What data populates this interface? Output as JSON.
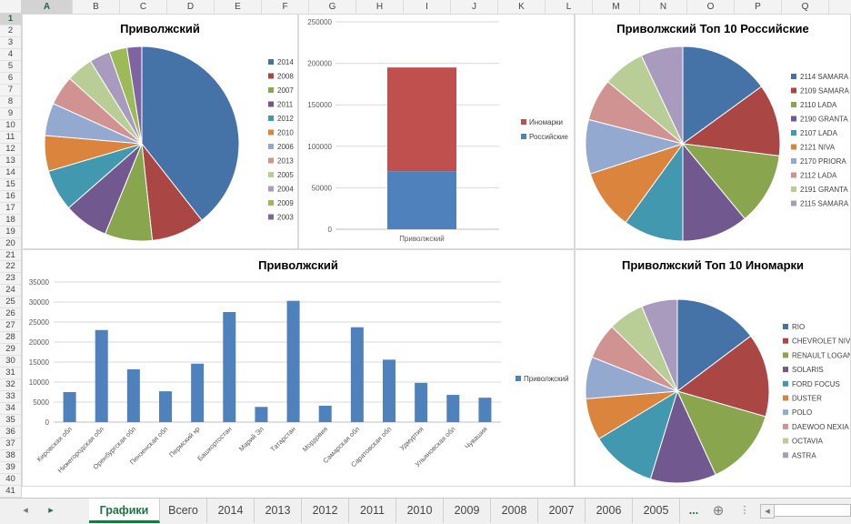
{
  "columns": [
    "A",
    "B",
    "C",
    "D",
    "E",
    "F",
    "G",
    "H",
    "I",
    "J",
    "K",
    "L",
    "M",
    "N",
    "O",
    "P",
    "Q"
  ],
  "rows": [
    "1",
    "2",
    "3",
    "4",
    "5",
    "6",
    "7",
    "8",
    "9",
    "10",
    "11",
    "12",
    "13",
    "14",
    "15",
    "16",
    "17",
    "18",
    "19",
    "20",
    "21",
    "22",
    "23",
    "24",
    "25",
    "26",
    "27",
    "28",
    "29",
    "30",
    "31",
    "32",
    "33",
    "34",
    "35",
    "36",
    "37",
    "38",
    "39",
    "40",
    "41"
  ],
  "tabs": [
    "Графики",
    "Всего",
    "2014",
    "2013",
    "2012",
    "2011",
    "2010",
    "2009",
    "2008",
    "2007",
    "2006",
    "2005",
    "..."
  ],
  "tab_nav": {
    "prev": "◂",
    "next": "▸",
    "add": "⊕",
    "more": "⋮",
    "scroll_left": "◂"
  },
  "colors": [
    "#4572a7",
    "#aa4643",
    "#89a54e",
    "#71588f",
    "#4198af",
    "#db843d",
    "#93a9cf",
    "#d19392",
    "#b9cd96",
    "#a99bbd"
  ],
  "extra_colors": [
    "#9bbb59",
    "#8064a2",
    "#4bacc6",
    "#f79646"
  ],
  "chart_data": [
    {
      "type": "pie",
      "title": "Приволжский",
      "categories": [
        "2014",
        "2008",
        "2007",
        "2011",
        "2012",
        "2010",
        "2006",
        "2013",
        "2005",
        "2004",
        "2009",
        "2003"
      ],
      "values": [
        40,
        9,
        8,
        7.5,
        7,
        6,
        5.5,
        5,
        4.5,
        3.5,
        3,
        2.5
      ]
    },
    {
      "type": "bar",
      "title": "",
      "stacked": true,
      "categories": [
        "Приволжский"
      ],
      "series": [
        {
          "name": "Российские",
          "values": [
            70000
          ]
        },
        {
          "name": "Иномарки",
          "values": [
            125000
          ]
        }
      ],
      "legend_order": [
        "Иномарки",
        "Российские"
      ],
      "ylim": [
        0,
        250000
      ],
      "yticks": [
        "0",
        "50000",
        "100000",
        "150000",
        "200000",
        "250000"
      ]
    },
    {
      "type": "pie",
      "title": "Приволжский Топ 10 Российские",
      "categories": [
        "2114 SAMARA",
        "2109 SAMARA",
        "2110 LADA",
        "2190 GRANTA",
        "2107 LADA",
        "2121 NIVA",
        "2170 PRIORA",
        "2112 LADA",
        "2191 GRANTA",
        "2115 SAMARA"
      ],
      "values": [
        15,
        12,
        12,
        11,
        10,
        10,
        9,
        7,
        7,
        7
      ]
    },
    {
      "type": "bar",
      "title": "Приволжский",
      "categories": [
        "Кировская обл",
        "Нижегородская обл",
        "Оренбургская обл",
        "Пензенская обл",
        "Пермский кр",
        "Башкортостан",
        "Марий Эл",
        "Татарстан",
        "Мордовия",
        "Самарская обл",
        "Саратовская обл",
        "Удмуртия",
        "Ульяновская обл",
        "Чувашия"
      ],
      "series": [
        {
          "name": "Приволжский",
          "values": [
            7500,
            23000,
            13200,
            7700,
            14600,
            27500,
            3800,
            30300,
            4100,
            23700,
            15600,
            9800,
            6800,
            6100
          ]
        }
      ],
      "ylim": [
        0,
        35000
      ],
      "yticks": [
        "0",
        "5000",
        "10000",
        "15000",
        "20000",
        "25000",
        "30000",
        "35000"
      ]
    },
    {
      "type": "pie",
      "title": "Приволжский Топ 10 Иномарки",
      "categories": [
        "RIO",
        "CHEVROLET NIVA",
        "RENAULT LOGAN",
        "SOLARIS",
        "FORD FOCUS",
        "DUSTER",
        "POLO",
        "DAEWOO NEXIA",
        "OCTAVIA",
        "ASTRA"
      ],
      "values": [
        14,
        14,
        13,
        11,
        11,
        7,
        7,
        6,
        6,
        6
      ]
    }
  ]
}
